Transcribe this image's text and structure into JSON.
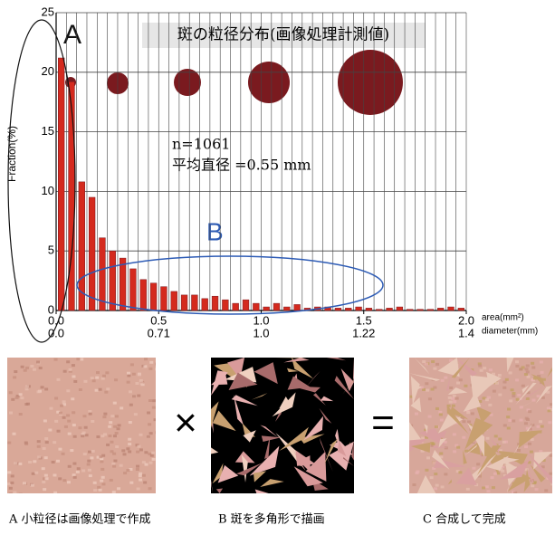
{
  "chart_data": {
    "type": "histogram",
    "title": "斑の粒径分布(画像処理計測値)",
    "y_label": "Fraction(%)",
    "x_label": "area(mm²)",
    "x2_label": "diameter(mm)",
    "bins": [
      0,
      0.05,
      0.1,
      0.15,
      0.2,
      0.25,
      0.3,
      0.35,
      0.4,
      0.45,
      0.5,
      0.55,
      0.6,
      0.65,
      0.7,
      0.75,
      0.8,
      0.85,
      0.9,
      0.95,
      1.0,
      1.05,
      1.1,
      1.15,
      1.2,
      1.25,
      1.3,
      1.35,
      1.4,
      1.45,
      1.5,
      1.55,
      1.6,
      1.65,
      1.7,
      1.75,
      1.8,
      1.85,
      1.9,
      1.95,
      2.0
    ],
    "values": [
      21.2,
      19.2,
      10.8,
      9.5,
      6.1,
      5.0,
      4.4,
      3.5,
      2.6,
      2.3,
      2.0,
      1.6,
      1.3,
      1.3,
      1.0,
      1.2,
      0.9,
      0.6,
      0.9,
      0.6,
      0.3,
      0.6,
      0.3,
      0.5,
      0.2,
      0.3,
      0.3,
      0.2,
      0.2,
      0.3,
      0.2,
      0.1,
      0.2,
      0.3,
      0.1,
      0.1,
      0.1,
      0.2,
      0.3,
      0.2
    ],
    "color": "#d42a1e",
    "xlim": [
      0,
      2.0
    ],
    "xticks": [
      {
        "value": 0,
        "label": "0.0"
      },
      0.5,
      {
        "value": 1,
        "label": "1.0"
      },
      1.5,
      {
        "value": 2,
        "label": "2.0"
      }
    ],
    "x2_labels": [
      "0.0",
      "0.71",
      "1.0",
      "1.22",
      "1.4"
    ],
    "ylim": [
      0,
      25
    ],
    "yticks": [
      0,
      5,
      10,
      15,
      20,
      25
    ],
    "grid": true,
    "annotations": [
      "n=1061",
      "平均直径 =0.55 mm",
      "A",
      "B"
    ]
  },
  "panels": [
    {
      "caption": "A 小粒径は画像処理で作成"
    },
    {
      "caption": "B 斑を多角形で描画"
    },
    {
      "caption": "C 合成して完成"
    }
  ],
  "operators": [
    "×",
    "="
  ]
}
